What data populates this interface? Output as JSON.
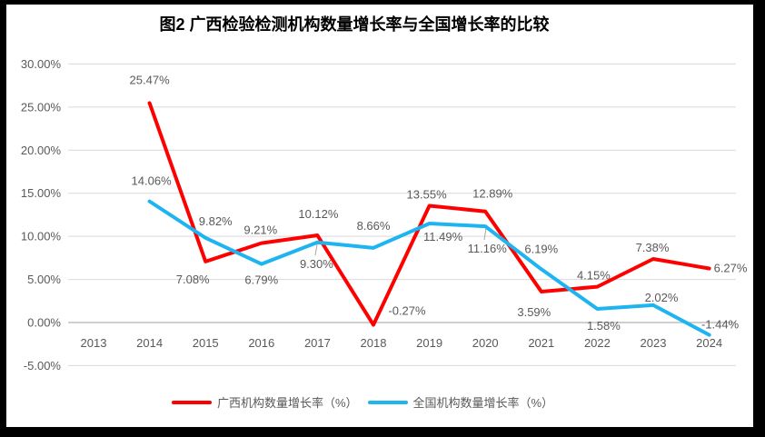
{
  "chart_data": {
    "type": "line",
    "title": "图2 广西检验检测机构数量增长率与全国增长率的比较",
    "categories": [
      "2013",
      "2014",
      "2015",
      "2016",
      "2017",
      "2018",
      "2019",
      "2020",
      "2021",
      "2022",
      "2023",
      "2024"
    ],
    "series": [
      {
        "name": "广西机构数量增长率（%）",
        "color": "#FF0000",
        "values": [
          null,
          25.47,
          7.08,
          9.21,
          10.12,
          -0.27,
          13.55,
          12.89,
          3.59,
          4.15,
          7.38,
          6.27
        ],
        "labels": [
          null,
          "25.47%",
          "7.08%",
          "9.21%",
          "10.12%",
          "-0.27%",
          "13.55%",
          "12.89%",
          "3.59%",
          "4.15%",
          "7.38%",
          "6.27%"
        ]
      },
      {
        "name": "全国机构数量增长率（%）",
        "color": "#1EB4F0",
        "values": [
          null,
          14.06,
          9.82,
          6.79,
          9.3,
          8.66,
          11.49,
          11.16,
          6.19,
          1.58,
          2.02,
          -1.44
        ],
        "labels": [
          null,
          "14.06%",
          "9.82%",
          "6.79%",
          "9.30%",
          "8.66%",
          "11.49%",
          "11.16%",
          "6.19%",
          "1.58%",
          "2.02%",
          "-1.44%"
        ]
      }
    ],
    "ylim": [
      -5,
      30
    ],
    "ytick_step": 5,
    "yticks": [
      {
        "value": 30,
        "label": "30.00%"
      },
      {
        "value": 25,
        "label": "25.00%"
      },
      {
        "value": 20,
        "label": "20.00%"
      },
      {
        "value": 15,
        "label": "15.00%"
      },
      {
        "value": 10,
        "label": "10.00%"
      },
      {
        "value": 5,
        "label": "5.00%"
      },
      {
        "value": 0,
        "label": "0.00%"
      },
      {
        "value": -5,
        "label": "-5.00%"
      }
    ],
    "grid": true,
    "legend_position": "bottom",
    "colors": {
      "grid": "#D9D9D9",
      "axis": "#BFBFBF",
      "text": "#595959",
      "title": "#000000",
      "leader": "#A6A6A6",
      "frame": "#000000",
      "plot_background": "#FFFFFF"
    }
  }
}
